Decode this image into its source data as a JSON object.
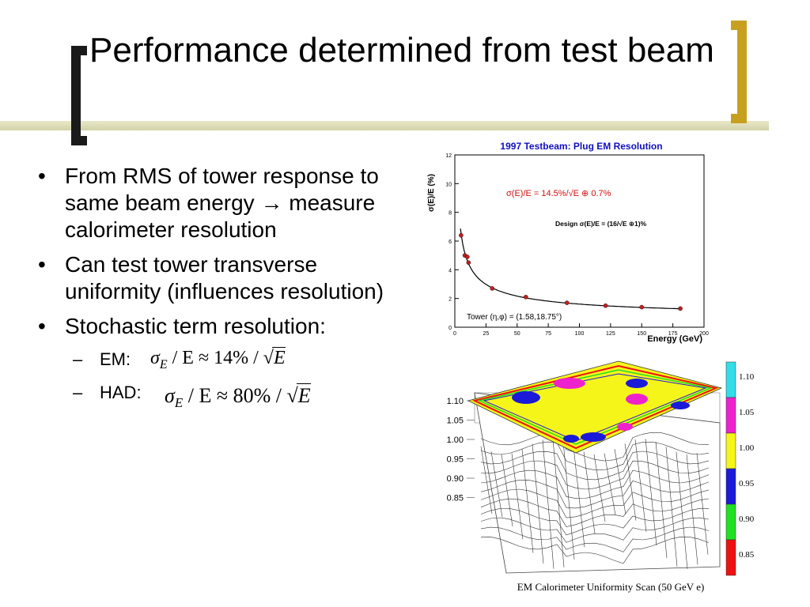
{
  "slide": {
    "title": "Performance determined from test beam",
    "bullets": [
      "From RMS of tower response to same beam energy → measure calorimeter resolution",
      "Can test tower transverse uniformity (influences resolution)",
      "Stochastic term resolution:"
    ],
    "sub_items": [
      {
        "label": "EM:",
        "formula_prefix": "σ",
        "formula_sub": "E",
        "formula_mid": " / E ≈ 14% / ",
        "formula_root": "E"
      },
      {
        "label": "HAD:",
        "formula_prefix": "σ",
        "formula_sub": "E",
        "formula_mid": " / E ≈ 80% / ",
        "formula_root": "E"
      }
    ]
  },
  "chart_data": [
    {
      "type": "scatter",
      "title": "1997 Testbeam: Plug EM Resolution",
      "xlabel": "Energy (GeV)",
      "ylabel": "σ(E)/E (%)",
      "xlim": [
        0,
        200
      ],
      "ylim": [
        0,
        12
      ],
      "x_ticks": [
        "0",
        "25",
        "50",
        "75",
        "100",
        "125",
        "150",
        "175",
        "200"
      ],
      "y_ticks": [
        "0",
        "2",
        "4",
        "6",
        "8",
        "10",
        "12"
      ],
      "x": [
        5,
        8,
        10,
        11,
        30,
        57,
        90,
        121,
        150,
        181
      ],
      "y": [
        6.4,
        5.0,
        4.9,
        4.5,
        2.7,
        2.1,
        1.7,
        1.5,
        1.4,
        1.3
      ],
      "fit_label": "σ(E)/E = 14.5%/√E ⊕ 0.7%",
      "design_label": "Design σ(E)/E = (16/√E ⊕1)%",
      "tower_label": "Tower (η,φ) = (1.58,18.75°)",
      "colors": {
        "title": "#1010c0",
        "points": "#c02020",
        "fit_label": "#d01010"
      }
    },
    {
      "type": "heatmap",
      "caption": "EM Calorimeter Uniformity Scan (50 GeV e)",
      "z_ticks": [
        "1.10",
        "1.05",
        "1.00",
        "0.95",
        "0.90",
        "0.85"
      ],
      "legend_items": [
        {
          "label": "1.10",
          "color": "#33dde8"
        },
        {
          "label": "1.05",
          "color": "#ee22cc"
        },
        {
          "label": "1.00",
          "color": "#f5f51a"
        },
        {
          "label": "0.95",
          "color": "#1a1ad8"
        },
        {
          "label": "0.90",
          "color": "#22e022"
        },
        {
          "label": "0.85",
          "color": "#ee1111"
        }
      ]
    }
  ]
}
